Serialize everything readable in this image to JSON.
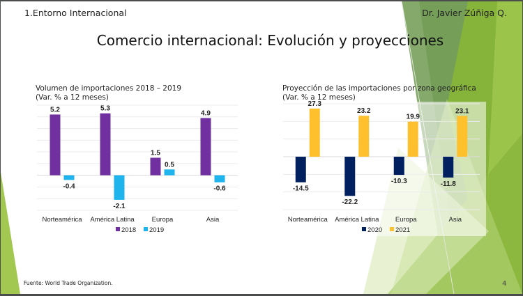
{
  "slide": {
    "section": "1.Entorno Internacional",
    "author": "Dr. Javier Zúñiga Q.",
    "title": "Comercio internacional: Evolución y proyecciones",
    "source": "Fuente: World Trade Organization.",
    "page_number": "4"
  },
  "chart_data": [
    {
      "type": "bar",
      "title": "Volumen de importaciones 2018 – 2019",
      "subtitle": "(Var. % a 12 meses)",
      "categories": [
        "Norteamérica",
        "América Latina",
        "Europa",
        "Asia"
      ],
      "series": [
        {
          "name": "2018",
          "color": "#7030a0",
          "values": [
            5.2,
            5.3,
            1.5,
            4.9
          ]
        },
        {
          "name": "2019",
          "color": "#1fb4ec",
          "values": [
            -0.4,
            -2.1,
            0.5,
            -0.6
          ]
        }
      ],
      "ylim": [
        -3,
        6
      ],
      "grid_step": 1,
      "grid": true,
      "legend": "bottom",
      "xlabel": "",
      "ylabel": ""
    },
    {
      "type": "bar",
      "title": "Proyección de las importaciones por zona geográfica",
      "subtitle": "(Var. % a 12 meses)",
      "categories": [
        "Norteamérica",
        "América Latina",
        "Europa",
        "Asia"
      ],
      "series": [
        {
          "name": "2020",
          "color": "#002060",
          "values": [
            -14.5,
            -22.2,
            -10.3,
            -11.8
          ]
        },
        {
          "name": "2021",
          "color": "#ffc02e",
          "values": [
            27.3,
            23.2,
            19.9,
            23.1
          ]
        }
      ],
      "ylim": [
        -30,
        30
      ],
      "grid_step": 10,
      "grid": true,
      "legend": "bottom",
      "xlabel": "",
      "ylabel": ""
    }
  ]
}
